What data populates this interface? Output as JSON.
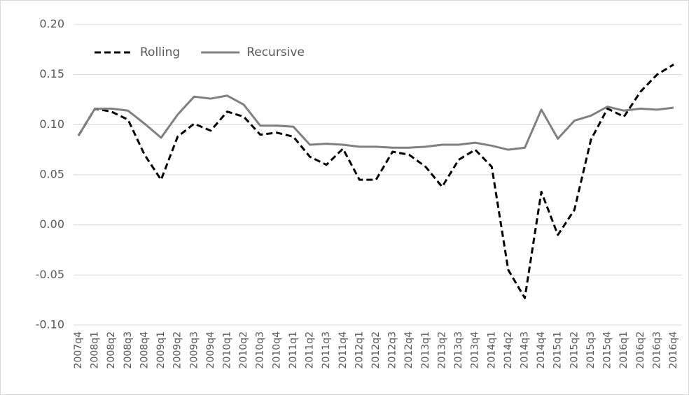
{
  "chart_data": {
    "type": "line",
    "categories": [
      "2007q4",
      "2008q1",
      "2008q2",
      "2008q3",
      "2008q4",
      "2009q1",
      "2009q2",
      "2009q3",
      "2009q4",
      "2010q1",
      "2010q2",
      "2010q3",
      "2010q4",
      "2011q1",
      "2011q2",
      "2011q3",
      "2011q4",
      "2012q1",
      "2012q2",
      "2012q3",
      "2012q4",
      "2013q1",
      "2013q2",
      "2013q3",
      "2013q4",
      "2014q1",
      "2014q2",
      "2014q3",
      "2014q4",
      "2015q1",
      "2015q2",
      "2015q3",
      "2015q4",
      "2016q1",
      "2016q2",
      "2016q3",
      "2016q4"
    ],
    "series": [
      {
        "name": "Rolling",
        "color": "#000000",
        "line_style": "dashed",
        "values": [
          0.089,
          0.116,
          0.113,
          0.105,
          0.07,
          0.045,
          0.088,
          0.101,
          0.094,
          0.113,
          0.108,
          0.09,
          0.092,
          0.088,
          0.068,
          0.06,
          0.076,
          0.045,
          0.045,
          0.073,
          0.07,
          0.058,
          0.038,
          0.065,
          0.075,
          0.058,
          -0.045,
          -0.073,
          0.033,
          -0.01,
          0.015,
          0.085,
          0.116,
          0.108,
          0.133,
          0.15,
          0.16
        ]
      },
      {
        "name": "Recursive",
        "color": "#808080",
        "line_style": "solid",
        "values": [
          0.089,
          0.116,
          0.116,
          0.114,
          0.101,
          0.087,
          0.11,
          0.128,
          0.126,
          0.129,
          0.12,
          0.099,
          0.099,
          0.098,
          0.08,
          0.081,
          0.08,
          0.078,
          0.078,
          0.077,
          0.077,
          0.078,
          0.08,
          0.08,
          0.082,
          0.079,
          0.075,
          0.077,
          0.115,
          0.086,
          0.104,
          0.109,
          0.118,
          0.114,
          0.116,
          0.115,
          0.117
        ]
      }
    ],
    "ylim": [
      -0.1,
      0.2
    ],
    "yticks": [
      {
        "value": -0.1,
        "label": "-0.10"
      },
      {
        "value": -0.05,
        "label": "-0.05"
      },
      {
        "value": 0,
        "label": "0.00"
      },
      {
        "value": 0.05,
        "label": "0.05"
      },
      {
        "value": 0.1,
        "label": "0.10"
      },
      {
        "value": 0.15,
        "label": "0.15"
      },
      {
        "value": 0.2,
        "label": "0.20"
      }
    ],
    "grid": true,
    "legend": "top-left"
  }
}
